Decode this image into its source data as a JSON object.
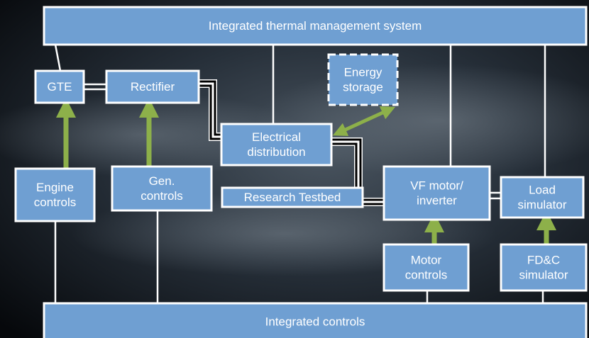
{
  "nodes": [
    {
      "lines": [
        "Integrated thermal management system"
      ]
    },
    {
      "lines": [
        "GTE"
      ]
    },
    {
      "lines": [
        "Rectifier"
      ]
    },
    {
      "lines": [
        "Energy",
        "storage"
      ]
    },
    {
      "lines": [
        "Electrical",
        "distribution"
      ]
    },
    {
      "lines": [
        "Engine",
        "controls"
      ]
    },
    {
      "lines": [
        "Gen.",
        "controls"
      ]
    },
    {
      "lines": [
        "Research Testbed"
      ]
    },
    {
      "lines": [
        "VF motor/",
        "inverter"
      ]
    },
    {
      "lines": [
        "Load",
        "simulator"
      ]
    },
    {
      "lines": [
        "Motor",
        "controls"
      ]
    },
    {
      "lines": [
        "FD&C",
        "simulator"
      ]
    },
    {
      "lines": [
        "Integrated controls"
      ]
    }
  ]
}
